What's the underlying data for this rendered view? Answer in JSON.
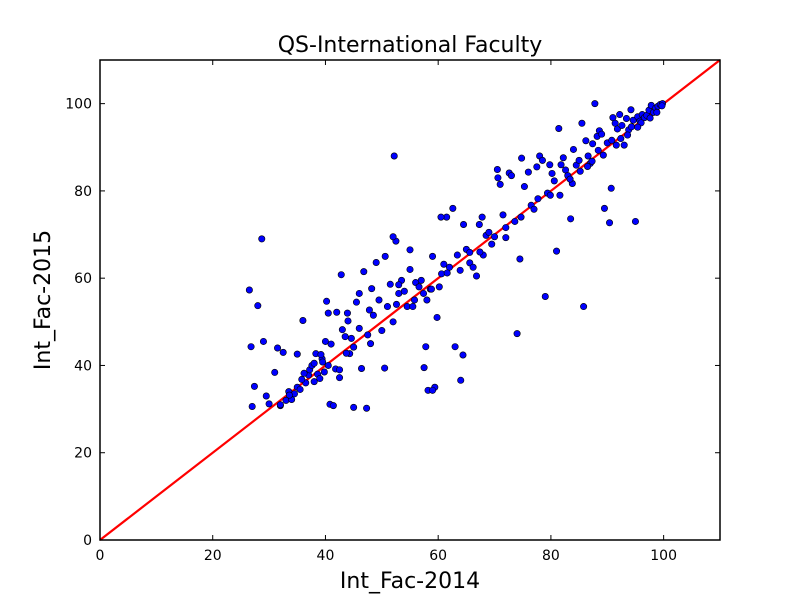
{
  "chart_data": {
    "type": "scatter",
    "title": "QS-International Faculty",
    "xlabel": "Int_Fac-2014",
    "ylabel": "Int_Fac-2015",
    "xlim": [
      0,
      110
    ],
    "ylim": [
      0,
      110
    ],
    "xticks": [
      0,
      20,
      40,
      60,
      80,
      100
    ],
    "yticks": [
      0,
      20,
      40,
      60,
      80,
      100
    ],
    "grid": false,
    "marker_color": "#0000ff",
    "marker_edge": "#000000",
    "line_color": "#ff0000",
    "reference_line": {
      "x": [
        0,
        110
      ],
      "y": [
        0,
        110
      ]
    },
    "series": [
      {
        "points": [
          [
            26.5,
            57.3
          ],
          [
            26.8,
            44.3
          ],
          [
            27.0,
            30.6
          ],
          [
            27.4,
            35.2
          ],
          [
            28.0,
            53.7
          ],
          [
            28.7,
            69.0
          ],
          [
            29.0,
            45.5
          ],
          [
            29.5,
            33.0
          ],
          [
            30.0,
            31.2
          ],
          [
            31.0,
            38.4
          ],
          [
            31.5,
            44.0
          ],
          [
            32.0,
            30.8
          ],
          [
            32.5,
            43.0
          ],
          [
            33.0,
            32.0
          ],
          [
            33.5,
            34.0
          ],
          [
            34.0,
            32.2
          ],
          [
            34.5,
            33.5
          ],
          [
            35.0,
            35.0
          ],
          [
            35.5,
            34.5
          ],
          [
            35.0,
            42.6
          ],
          [
            36.0,
            50.3
          ],
          [
            36.5,
            36.0
          ],
          [
            37.0,
            37.8
          ],
          [
            37.2,
            39.0
          ],
          [
            37.6,
            40.0
          ],
          [
            38.0,
            36.3
          ],
          [
            38.3,
            42.7
          ],
          [
            38.6,
            38.0
          ],
          [
            39.0,
            37.0
          ],
          [
            39.4,
            41.5
          ],
          [
            39.8,
            38.5
          ],
          [
            39.5,
            40.8
          ],
          [
            40.0,
            45.5
          ],
          [
            40.2,
            54.7
          ],
          [
            40.5,
            52.0
          ],
          [
            40.8,
            31.1
          ],
          [
            41.0,
            44.9
          ],
          [
            41.4,
            30.8
          ],
          [
            41.8,
            39.2
          ],
          [
            42.0,
            52.2
          ],
          [
            42.5,
            37.2
          ],
          [
            42.8,
            60.8
          ],
          [
            43.0,
            48.2
          ],
          [
            43.5,
            46.6
          ],
          [
            43.9,
            52.0
          ],
          [
            44.3,
            42.7
          ],
          [
            44.6,
            46.2
          ],
          [
            45.0,
            30.4
          ],
          [
            45.5,
            54.5
          ],
          [
            46.0,
            48.5
          ],
          [
            46.4,
            39.3
          ],
          [
            46.8,
            61.5
          ],
          [
            47.3,
            30.2
          ],
          [
            47.8,
            52.7
          ],
          [
            48.2,
            57.6
          ],
          [
            48.5,
            51.5
          ],
          [
            49.0,
            63.6
          ],
          [
            49.5,
            55.0
          ],
          [
            50.0,
            48.0
          ],
          [
            50.5,
            39.4
          ],
          [
            51.0,
            53.5
          ],
          [
            51.5,
            58.6
          ],
          [
            52.0,
            50.0
          ],
          [
            52.2,
            88.0
          ],
          [
            52.6,
            54.0
          ],
          [
            53.0,
            56.5
          ],
          [
            53.5,
            59.5
          ],
          [
            54.0,
            57.0
          ],
          [
            54.5,
            53.5
          ],
          [
            55.0,
            62.0
          ],
          [
            55.5,
            53.5
          ],
          [
            56.0,
            59.0
          ],
          [
            56.6,
            58.0
          ],
          [
            57.0,
            59.5
          ],
          [
            57.4,
            56.5
          ],
          [
            57.8,
            44.3
          ],
          [
            58.0,
            55.0
          ],
          [
            58.2,
            34.3
          ],
          [
            58.6,
            57.5
          ],
          [
            59.0,
            65.0
          ],
          [
            59.4,
            35.0
          ],
          [
            59.8,
            51.0
          ],
          [
            60.2,
            58.0
          ],
          [
            60.6,
            61.0
          ],
          [
            61.0,
            63.2
          ],
          [
            61.5,
            74.0
          ],
          [
            62.0,
            62.5
          ],
          [
            62.6,
            76.0
          ],
          [
            63.0,
            44.3
          ],
          [
            63.4,
            65.3
          ],
          [
            63.9,
            61.8
          ],
          [
            64.4,
            42.4
          ],
          [
            65.0,
            66.6
          ],
          [
            65.6,
            63.5
          ],
          [
            66.2,
            62.5
          ],
          [
            66.8,
            60.5
          ],
          [
            67.3,
            72.3
          ],
          [
            67.8,
            74.0
          ],
          [
            68.0,
            65.3
          ],
          [
            68.5,
            69.8
          ],
          [
            69.0,
            70.5
          ],
          [
            69.5,
            67.8
          ],
          [
            70.0,
            69.5
          ],
          [
            70.5,
            84.9
          ],
          [
            71.0,
            81.5
          ],
          [
            71.5,
            74.5
          ],
          [
            72.0,
            69.3
          ],
          [
            72.6,
            84.1
          ],
          [
            73.0,
            83.5
          ],
          [
            73.6,
            73.0
          ],
          [
            74.0,
            47.3
          ],
          [
            74.5,
            64.4
          ],
          [
            74.8,
            87.5
          ],
          [
            75.3,
            81.0
          ],
          [
            76.0,
            84.3
          ],
          [
            76.5,
            76.7
          ],
          [
            77.0,
            75.8
          ],
          [
            77.5,
            85.5
          ],
          [
            78.0,
            88.0
          ],
          [
            78.5,
            87.0
          ],
          [
            79.0,
            55.8
          ],
          [
            79.4,
            79.5
          ],
          [
            79.8,
            86.0
          ],
          [
            80.2,
            84.0
          ],
          [
            80.6,
            82.3
          ],
          [
            81.0,
            66.2
          ],
          [
            81.4,
            94.3
          ],
          [
            81.8,
            86.0
          ],
          [
            82.2,
            87.6
          ],
          [
            82.6,
            84.8
          ],
          [
            83.0,
            83.5
          ],
          [
            83.5,
            73.6
          ],
          [
            84.0,
            89.5
          ],
          [
            84.5,
            85.9
          ],
          [
            85.0,
            87.0
          ],
          [
            85.5,
            95.5
          ],
          [
            85.8,
            53.5
          ],
          [
            86.2,
            91.5
          ],
          [
            86.6,
            88.0
          ],
          [
            87.0,
            86.3
          ],
          [
            87.4,
            90.8
          ],
          [
            87.8,
            100.0
          ],
          [
            88.2,
            92.5
          ],
          [
            88.6,
            93.8
          ],
          [
            89.0,
            93.0
          ],
          [
            89.5,
            76.0
          ],
          [
            90.0,
            91.0
          ],
          [
            90.4,
            72.7
          ],
          [
            90.7,
            80.6
          ],
          [
            91.0,
            96.8
          ],
          [
            91.4,
            95.5
          ],
          [
            91.8,
            94.2
          ],
          [
            92.2,
            97.5
          ],
          [
            92.6,
            95.0
          ],
          [
            93.0,
            90.5
          ],
          [
            93.4,
            96.6
          ],
          [
            93.8,
            94.0
          ],
          [
            94.2,
            98.6
          ],
          [
            94.6,
            96.2
          ],
          [
            95.0,
            73.0
          ],
          [
            95.4,
            97.0
          ],
          [
            95.8,
            96.0
          ],
          [
            96.2,
            97.5
          ],
          [
            96.6,
            96.8
          ],
          [
            97.0,
            97.3
          ],
          [
            97.4,
            98.5
          ],
          [
            97.8,
            99.6
          ],
          [
            98.2,
            98.0
          ],
          [
            98.6,
            99.0
          ],
          [
            99.0,
            99.4
          ],
          [
            99.4,
            99.8
          ],
          [
            99.8,
            100.0
          ],
          [
            59.0,
            34.3
          ],
          [
            57.5,
            39.5
          ],
          [
            64.0,
            36.6
          ],
          [
            53.0,
            58.5
          ],
          [
            55.0,
            66.5
          ],
          [
            52.5,
            68.5
          ],
          [
            52.0,
            69.5
          ],
          [
            50.6,
            65.0
          ],
          [
            38.0,
            40.5
          ],
          [
            39.2,
            42.5
          ],
          [
            36.2,
            38.2
          ],
          [
            40.5,
            40.0
          ],
          [
            45.0,
            44.2
          ],
          [
            48.0,
            45.0
          ],
          [
            46.0,
            56.5
          ],
          [
            44.0,
            50.2
          ],
          [
            60.5,
            74.0
          ],
          [
            64.5,
            72.3
          ],
          [
            67.4,
            66.0
          ],
          [
            70.6,
            83.0
          ],
          [
            77.7,
            78.2
          ],
          [
            81.6,
            79.0
          ],
          [
            83.8,
            81.7
          ],
          [
            86.5,
            85.6
          ],
          [
            88.4,
            89.3
          ],
          [
            90.8,
            91.6
          ],
          [
            92.4,
            92.0
          ],
          [
            94.3,
            94.7
          ],
          [
            96.0,
            95.6
          ],
          [
            97.6,
            96.7
          ],
          [
            98.8,
            98.0
          ],
          [
            99.7,
            99.5
          ],
          [
            35.8,
            36.8
          ],
          [
            33.6,
            33.2
          ],
          [
            32.0,
            31.0
          ],
          [
            42.5,
            39.0
          ],
          [
            43.7,
            42.8
          ],
          [
            47.5,
            47.0
          ],
          [
            55.8,
            55.0
          ],
          [
            58.8,
            57.5
          ],
          [
            61.6,
            61.2
          ],
          [
            65.6,
            65.9
          ],
          [
            72.0,
            71.6
          ],
          [
            74.7,
            74.0
          ],
          [
            79.9,
            79.0
          ],
          [
            83.4,
            82.7
          ],
          [
            85.2,
            84.5
          ],
          [
            87.3,
            86.8
          ],
          [
            89.3,
            88.2
          ],
          [
            91.6,
            90.5
          ],
          [
            93.6,
            92.8
          ],
          [
            95.4,
            94.6
          ]
        ]
      }
    ]
  }
}
